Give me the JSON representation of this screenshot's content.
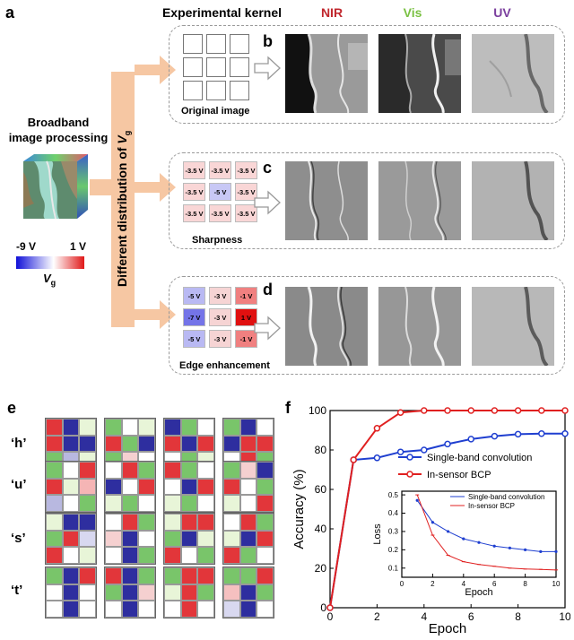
{
  "panels": {
    "a": "a",
    "b": "b",
    "c": "c",
    "d": "d",
    "e": "e",
    "f": "f"
  },
  "header": {
    "kernel": "Experimental kernel",
    "nir": "NIR",
    "vis": "Vis",
    "uv": "UV"
  },
  "colors": {
    "nir": "#c0272d",
    "vis": "#7ac143",
    "uv": "#7b3f9e",
    "arrow": "#f6c7a3"
  },
  "left": {
    "title_line1": "Broadband",
    "title_line2": "image processing",
    "vg_min": "-9 V",
    "vg_max": "1 V",
    "vg_label": "V",
    "vg_sub": "g",
    "axis_label": "Different distribution of ",
    "axis_v": "V",
    "axis_sub": "g"
  },
  "rows": {
    "b": {
      "caption": "Original image"
    },
    "c": {
      "caption": "Sharpness",
      "cells": [
        "-3.5 V",
        "-3.5 V",
        "-3.5 V",
        "-3.5 V",
        "-5 V",
        "-3.5 V",
        "-3.5 V",
        "-3.5 V",
        "-3.5 V"
      ],
      "colors": [
        "#f9d6d6",
        "#f9d6d6",
        "#f9d6d6",
        "#f9d6d6",
        "#c8c8f5",
        "#f9d6d6",
        "#f9d6d6",
        "#f9d6d6",
        "#f9d6d6"
      ]
    },
    "d": {
      "caption": "Edge enhancement",
      "cells": [
        "-5 V",
        "-3 V",
        "-1 V",
        "-7 V",
        "-3 V",
        "1 V",
        "-5 V",
        "-3 V",
        "-1 V"
      ],
      "colors": [
        "#b9b9f3",
        "#f6d4d4",
        "#f08080",
        "#7474e8",
        "#f6d4d4",
        "#e01010",
        "#b9b9f3",
        "#f6d4d4",
        "#f08080"
      ]
    }
  },
  "e_rows": [
    {
      "label": "‘h’",
      "grids": [
        [
          "#e2363a",
          "#2e2e9f",
          "#e8f5d8",
          "#e2363a",
          "#2e2e9f",
          "#2e2e9f",
          "#79c56a",
          "#b8b8e0",
          "#e8f5d8"
        ],
        [
          "#79c56a",
          "#ffffff",
          "#e8f5d8",
          "#e2363a",
          "#79c56a",
          "#2e2e9f",
          "#79c56a",
          "#f5d0d0",
          "#ffffff"
        ],
        [
          "#2e2e9f",
          "#79c56a",
          "#ffffff",
          "#e2363a",
          "#2e2e9f",
          "#e2363a",
          "#ffffff",
          "#79c56a",
          "#e8f5d8"
        ],
        [
          "#79c56a",
          "#2e2e9f",
          "#ffffff",
          "#2e2e9f",
          "#e2363a",
          "#e2363a",
          "#ffffff",
          "#e2363a",
          "#79c56a"
        ]
      ]
    },
    {
      "label": "‘u’",
      "grids": [
        [
          "#79c56a",
          "#ffffff",
          "#e2363a",
          "#e2363a",
          "#e8f5d8",
          "#f5b5b5",
          "#b8b8e0",
          "#ffffff",
          "#79c56a"
        ],
        [
          "#ffffff",
          "#e2363a",
          "#79c56a",
          "#2e2e9f",
          "#ffffff",
          "#e2363a",
          "#e8f5d8",
          "#79c56a",
          "#ffffff"
        ],
        [
          "#e2363a",
          "#79c56a",
          "#ffffff",
          "#ffffff",
          "#2e2e9f",
          "#e2363a",
          "#e8f5d8",
          "#79c56a",
          "#ffffff"
        ],
        [
          "#79c56a",
          "#f5d0d0",
          "#2e2e9f",
          "#e2363a",
          "#ffffff",
          "#79c56a",
          "#e8f5d8",
          "#ffffff",
          "#e2363a"
        ]
      ]
    },
    {
      "label": "‘s’",
      "grids": [
        [
          "#e8f5d8",
          "#2e2e9f",
          "#2e2e9f",
          "#79c56a",
          "#e2363a",
          "#d8d8f0",
          "#e2363a",
          "#ffffff",
          "#e8f5d8"
        ],
        [
          "#ffffff",
          "#e2363a",
          "#79c56a",
          "#f5d0d0",
          "#2e2e9f",
          "#ffffff",
          "#ffffff",
          "#2e2e9f",
          "#79c56a"
        ],
        [
          "#e8f5d8",
          "#e2363a",
          "#e2363a",
          "#79c56a",
          "#2e2e9f",
          "#e8f5d8",
          "#e2363a",
          "#ffffff",
          "#79c56a"
        ],
        [
          "#ffffff",
          "#e2363a",
          "#79c56a",
          "#e8f5d8",
          "#2e2e9f",
          "#e2363a",
          "#e2363a",
          "#79c56a",
          "#ffffff"
        ]
      ]
    },
    {
      "label": "‘t’",
      "grids": [
        [
          "#79c56a",
          "#2e2e9f",
          "#e2363a",
          "#ffffff",
          "#2e2e9f",
          "#ffffff",
          "#ffffff",
          "#2e2e9f",
          "#ffffff"
        ],
        [
          "#e2363a",
          "#2e2e9f",
          "#79c56a",
          "#79c56a",
          "#2e2e9f",
          "#f5d0d0",
          "#ffffff",
          "#2e2e9f",
          "#ffffff"
        ],
        [
          "#79c56a",
          "#e2363a",
          "#e2363a",
          "#e8f5d8",
          "#e2363a",
          "#79c56a",
          "#ffffff",
          "#e2363a",
          "#ffffff"
        ],
        [
          "#79c56a",
          "#79c56a",
          "#e2363a",
          "#f5c0c0",
          "#2e2e9f",
          "#79c56a",
          "#d8d8f0",
          "#2e2e9f",
          "#ffffff"
        ]
      ]
    }
  ],
  "chart_data": [
    {
      "type": "line",
      "xlabel": "Epoch",
      "ylabel": "Accuracy (%)",
      "xlim": [
        0,
        10
      ],
      "ylim": [
        0,
        100
      ],
      "xticks": [
        0,
        2,
        4,
        6,
        8,
        10
      ],
      "yticks": [
        0,
        20,
        40,
        60,
        80,
        100
      ],
      "x": [
        0,
        1,
        2,
        3,
        4,
        5,
        6,
        7,
        8,
        9,
        10
      ],
      "series": [
        {
          "name": "Single-band convolution",
          "color": "#1f3fd0",
          "values": [
            0,
            75,
            76,
            79,
            80,
            83,
            85.5,
            87,
            88,
            88.3,
            88.3
          ]
        },
        {
          "name": "In-sensor BCP",
          "color": "#e02020",
          "values": [
            0,
            75,
            91,
            99,
            100,
            100,
            100,
            100,
            100,
            100,
            100
          ]
        }
      ],
      "legend": "center-right"
    },
    {
      "type": "line",
      "xlabel": "Epoch",
      "ylabel": "Loss",
      "xlim": [
        0,
        10
      ],
      "ylim": [
        0.05,
        0.52
      ],
      "xticks": [
        0,
        2,
        4,
        6,
        8,
        10
      ],
      "yticks": [
        0.1,
        0.2,
        0.3,
        0.4,
        0.5
      ],
      "x": [
        1,
        2,
        3,
        4,
        5,
        6,
        7,
        8,
        9,
        10
      ],
      "series": [
        {
          "name": "Single-band convolution",
          "color": "#1f3fd0",
          "values": [
            0.47,
            0.35,
            0.3,
            0.26,
            0.24,
            0.22,
            0.21,
            0.2,
            0.19,
            0.19
          ]
        },
        {
          "name": "In-sensor BCP",
          "color": "#e02020",
          "values": [
            0.5,
            0.28,
            0.17,
            0.135,
            0.12,
            0.11,
            0.1,
            0.095,
            0.093,
            0.09
          ]
        }
      ],
      "legend": "top-right"
    }
  ]
}
